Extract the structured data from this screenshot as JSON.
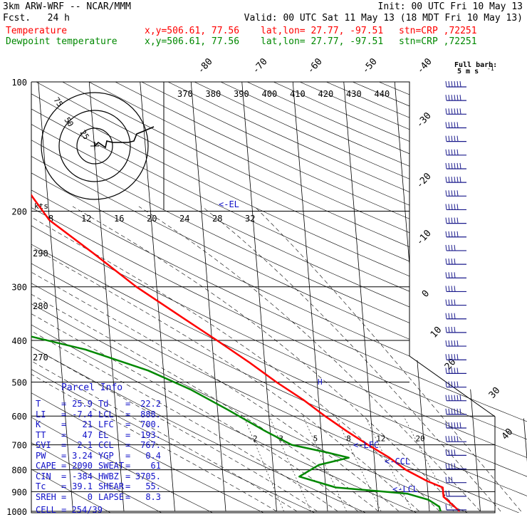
{
  "header": {
    "model": "3km ARW-WRF -- NCAR/MMM",
    "init": "Init: 00 UTC Fri 10 May 13",
    "fcst": "Fcst.   24 h",
    "valid": "Valid: 00 UTC Sat 11 May 13 (18 MDT Fri 10 May 13)",
    "temp_line": {
      "label": "Temperature",
      "xy": "x,y=506.61, 77.56",
      "latlon": "lat,lon= 27.77, -97.51",
      "stn": "stn=CRP ,72251",
      "color": "#ff0000"
    },
    "dewp_line": {
      "label": "Dewpoint temperature",
      "xy": "x,y=506.61, 77.56",
      "latlon": "lat,lon= 27.77, -97.51",
      "stn": "stn=CRP ,72251",
      "color": "#008800"
    },
    "barb_key_1": "Full barb:",
    "barb_key_2": "5 m s",
    "barb_key_exp": "-1"
  },
  "chart_data": {
    "type": "line",
    "subtype": "skew-T log-p sounding",
    "pressure_levels": [
      100,
      200,
      300,
      400,
      500,
      600,
      700,
      800,
      900,
      1000
    ],
    "temp_labels_top": [
      "-80",
      "-70",
      "-60",
      "-50",
      "-40"
    ],
    "temp_labels_right": [
      "-30",
      "-20",
      "-10",
      "0",
      "10",
      "20",
      "30",
      "40"
    ],
    "theta_labels": [
      "370",
      "380",
      "390",
      "400",
      "410",
      "420",
      "430",
      "440"
    ],
    "theta_labels_left": [
      "290",
      "280",
      "270"
    ],
    "mixing_ratio_labels": [
      "2",
      "3",
      "5",
      "8",
      "12",
      "20"
    ],
    "hodo_speed_labels": [
      "8",
      "12",
      "16",
      "20",
      "24",
      "28",
      "32"
    ],
    "hodo_unit": "kts",
    "hodo_ring_labels": [
      "75",
      "50",
      "25"
    ],
    "annotations": {
      "el": "<-EL",
      "lfc": "<-LFC",
      "ccl": "<-CCL",
      "lcl": "<-LCL",
      "h_marker": "H"
    },
    "series": [
      {
        "name": "Temperature",
        "color": "#ff0000",
        "points": [
          [
            100,
            -70
          ],
          [
            115,
            -66
          ],
          [
            140,
            -60
          ],
          [
            160,
            -56
          ],
          [
            185,
            -53
          ],
          [
            210,
            -50
          ],
          [
            250,
            -42
          ],
          [
            300,
            -34
          ],
          [
            350,
            -26
          ],
          [
            400,
            -19
          ],
          [
            450,
            -13
          ],
          [
            500,
            -8
          ],
          [
            550,
            -3
          ],
          [
            600,
            1
          ],
          [
            650,
            5
          ],
          [
            700,
            9
          ],
          [
            750,
            13
          ],
          [
            800,
            16
          ],
          [
            850,
            20
          ],
          [
            880,
            23
          ],
          [
            925,
            23
          ],
          [
            975,
            25
          ],
          [
            1000,
            25.9
          ]
        ]
      },
      {
        "name": "Dewpoint temperature",
        "color": "#008800",
        "points": [
          [
            100,
            -96
          ],
          [
            150,
            -92
          ],
          [
            170,
            -93
          ],
          [
            190,
            -93
          ],
          [
            220,
            -90
          ],
          [
            250,
            -84
          ],
          [
            300,
            -76
          ],
          [
            350,
            -72
          ],
          [
            380,
            -60
          ],
          [
            420,
            -45
          ],
          [
            470,
            -33
          ],
          [
            520,
            -25
          ],
          [
            580,
            -18
          ],
          [
            650,
            -11
          ],
          [
            700,
            -6
          ],
          [
            730,
            1
          ],
          [
            750,
            5
          ],
          [
            780,
            -1
          ],
          [
            830,
            -5
          ],
          [
            880,
            2
          ],
          [
            910,
            16
          ],
          [
            940,
            20
          ],
          [
            975,
            22
          ],
          [
            1000,
            22.2
          ]
        ]
      }
    ],
    "wind_barb_speeds_ms": [
      30,
      30,
      30,
      25,
      25,
      25,
      30,
      30,
      25,
      25,
      25,
      25,
      20,
      20,
      20,
      20,
      20,
      20,
      20,
      25,
      25,
      25,
      25,
      30,
      30,
      30,
      25,
      20,
      20,
      15,
      10,
      5
    ]
  },
  "parcel_info": {
    "title": "Parcel Info",
    "rows": [
      {
        "l1": "T",
        "v1": "25.9",
        "l2": "Td",
        "v2": "22.2"
      },
      {
        "l1": "LI",
        "v1": "-7.4",
        "l2": "LCL",
        "v2": "888."
      },
      {
        "l1": "K",
        "v1": "21",
        "l2": "LFC",
        "v2": "700."
      },
      {
        "l1": "TT",
        "v1": "47",
        "l2": "EL",
        "v2": "193."
      },
      {
        "l1": "SVI",
        "v1": "2.1",
        "l2": "CCL",
        "v2": "767."
      },
      {
        "l1": "PW",
        "v1": "3.24",
        "l2": "YGP",
        "v2": "0.4"
      },
      {
        "l1": "CAPE",
        "v1": "2090",
        "l2": "SWEAT",
        "v2": "61"
      },
      {
        "l1": "CIN",
        "v1": "-384",
        "l2": "HWBZ",
        "v2": "3705."
      },
      {
        "l1": "Tc",
        "v1": "39.1",
        "l2": "SHEAR",
        "v2": "55."
      },
      {
        "l1": "SREH",
        "v1": "0",
        "l2": "LAPSE",
        "v2": "8.3"
      }
    ],
    "cell": "CELL = 254/39"
  },
  "colors": {
    "grid": "#000000",
    "temp": "#ff0000",
    "dewp": "#008800",
    "parcel": "#1010c8",
    "barb": "#1a1a8c"
  }
}
